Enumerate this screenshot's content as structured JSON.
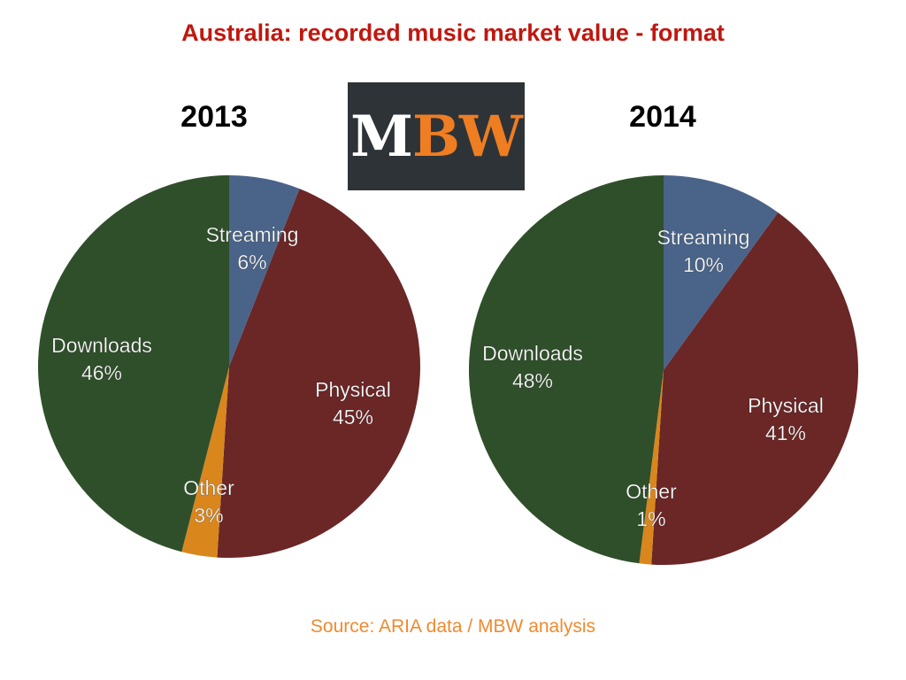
{
  "title": "Australia: recorded music market value - format",
  "logo": {
    "left": "M",
    "right": "BW"
  },
  "source": "Source: ARIA data / MBW analysis",
  "colors": {
    "Streaming": "#4a6489",
    "Physical": "#6b2626",
    "Other": "#d9861c",
    "Downloads": "#2f4f2a"
  },
  "chart_data": [
    {
      "type": "pie",
      "title": "2013",
      "labels": [
        "Streaming",
        "Physical",
        "Other",
        "Downloads"
      ],
      "values": [
        6,
        45,
        3,
        46
      ],
      "value_labels": [
        "6%",
        "45%",
        "3%",
        "46%"
      ]
    },
    {
      "type": "pie",
      "title": "2014",
      "labels": [
        "Streaming",
        "Physical",
        "Other",
        "Downloads"
      ],
      "values": [
        10,
        41,
        1,
        48
      ],
      "value_labels": [
        "10%",
        "41%",
        "1%",
        "48%"
      ]
    }
  ]
}
